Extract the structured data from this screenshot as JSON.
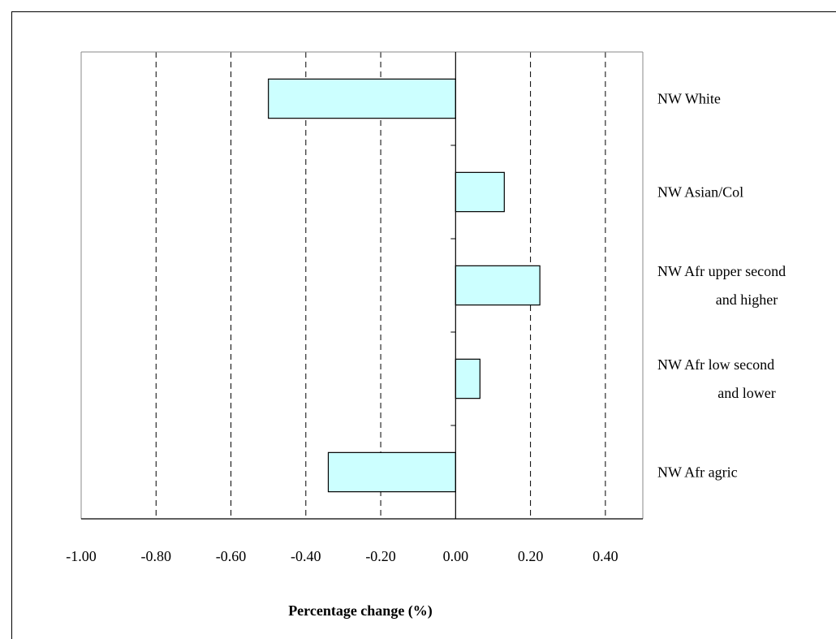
{
  "chart_data": {
    "type": "bar",
    "orientation": "horizontal",
    "categories": [
      "NW White",
      "NW Asian/Col",
      "NW Afr upper second and higher",
      "NW Afr low second and lower",
      "NW Afr agric"
    ],
    "category_label_lines": [
      [
        "NW White"
      ],
      [
        "NW Asian/Col"
      ],
      [
        "NW Afr upper second",
        "and higher"
      ],
      [
        "NW Afr low second",
        "and lower"
      ],
      [
        "NW Afr agric"
      ]
    ],
    "values": [
      -0.5,
      0.13,
      0.225,
      0.065,
      -0.34
    ],
    "xlim": [
      -1.0,
      0.5
    ],
    "xticks": [
      -1.0,
      -0.8,
      -0.6,
      -0.4,
      -0.2,
      0.0,
      0.2,
      0.4
    ],
    "xtick_labels": [
      "-1.00",
      "-0.80",
      "-0.60",
      "-0.40",
      "-0.20",
      "0.00",
      "0.20",
      "0.40"
    ],
    "xlabel": "Percentage change (%)",
    "ylabel": "",
    "title": "",
    "grid": "vertical dashed",
    "legend": "none",
    "colors": {
      "bar_fill": "#ccffff",
      "bar_stroke": "#000000",
      "grid": "#000000",
      "frame": "#000000"
    }
  }
}
